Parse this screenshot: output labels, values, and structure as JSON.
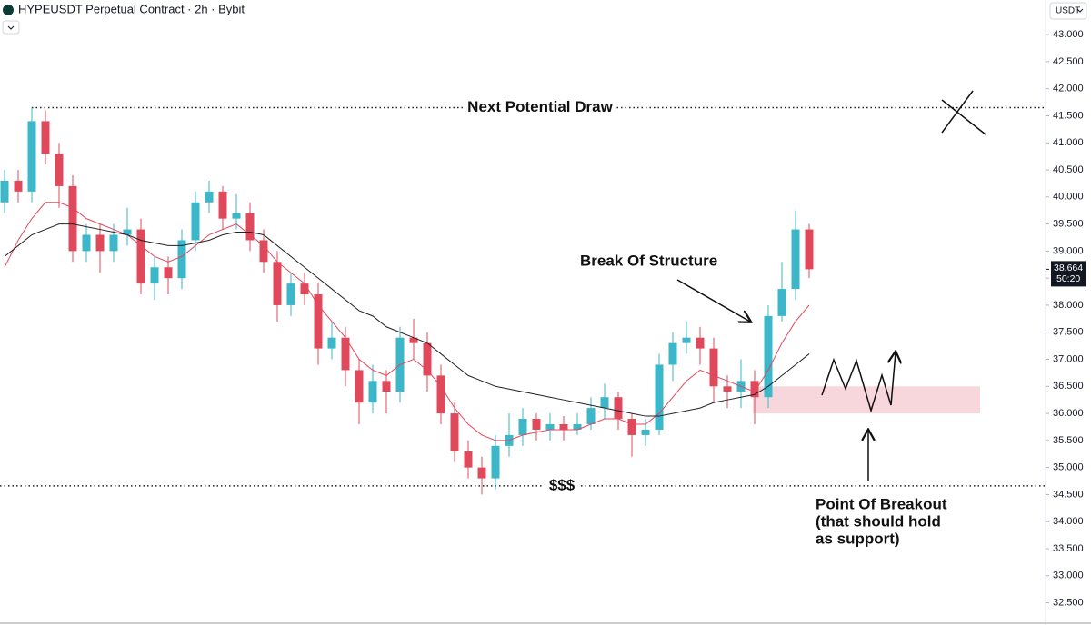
{
  "chart_data": {
    "type": "candlestick",
    "title": "HYPEUSDT Perpetual Contract · 2h · Bybit",
    "currency": "USDT",
    "up_color": "#3bb7c9",
    "down_color": "#e0485c",
    "open": [
      39.9,
      40.3,
      40.1,
      41.4,
      40.8,
      40.2,
      39.0,
      39.3,
      39.0,
      39.3,
      39.4,
      38.4,
      38.7,
      38.5,
      39.2,
      39.9,
      40.1,
      39.6,
      39.7,
      39.2,
      38.8,
      38.0,
      38.4,
      38.2,
      37.2,
      37.4,
      36.8,
      36.2,
      36.6,
      36.4,
      37.4,
      37.3,
      36.7,
      36.0,
      35.3,
      35.0,
      34.8,
      35.4,
      35.6,
      35.9,
      35.7,
      35.8,
      35.7,
      35.8,
      36.1,
      36.3,
      35.9,
      35.6,
      35.7,
      36.9,
      37.3,
      37.4,
      37.2,
      36.5,
      36.4,
      36.6,
      36.3,
      37.8,
      38.3,
      39.4
    ],
    "high": [
      40.5,
      40.5,
      41.65,
      41.6,
      41.0,
      40.4,
      39.5,
      39.5,
      39.5,
      39.8,
      39.6,
      38.9,
      38.9,
      39.4,
      40.1,
      40.3,
      40.2,
      40.05,
      39.9,
      39.4,
      39.0,
      38.6,
      38.6,
      38.4,
      37.7,
      37.6,
      37.0,
      36.9,
      36.8,
      37.6,
      37.75,
      37.5,
      36.9,
      36.2,
      35.5,
      35.2,
      35.6,
      36.0,
      36.1,
      36.0,
      36.0,
      35.95,
      36.0,
      36.3,
      36.55,
      36.4,
      36.0,
      35.9,
      37.1,
      37.5,
      37.7,
      37.6,
      37.4,
      36.7,
      37.0,
      36.8,
      38.0,
      38.8,
      39.75,
      39.5
    ],
    "low": [
      39.7,
      39.9,
      39.9,
      40.6,
      39.8,
      38.8,
      38.8,
      38.6,
      38.8,
      39.1,
      38.2,
      38.1,
      38.2,
      38.3,
      39.0,
      39.7,
      39.4,
      39.4,
      39.0,
      38.6,
      37.7,
      37.8,
      38.0,
      36.9,
      37.0,
      36.5,
      35.8,
      36.0,
      36.0,
      36.2,
      37.0,
      36.4,
      35.8,
      35.1,
      34.8,
      34.5,
      34.6,
      35.2,
      35.4,
      35.5,
      35.5,
      35.5,
      35.6,
      35.7,
      35.9,
      35.7,
      35.2,
      35.4,
      35.6,
      36.6,
      37.1,
      36.9,
      36.2,
      36.1,
      36.1,
      35.8,
      36.1,
      37.7,
      38.1,
      38.5
    ],
    "close": [
      40.3,
      40.1,
      41.4,
      40.8,
      40.2,
      39.0,
      39.3,
      39.0,
      39.3,
      39.4,
      38.4,
      38.7,
      38.5,
      39.2,
      39.9,
      40.1,
      39.6,
      39.7,
      39.2,
      38.8,
      38.0,
      38.4,
      38.2,
      37.2,
      37.4,
      36.8,
      36.2,
      36.6,
      36.4,
      37.4,
      37.3,
      36.7,
      36.0,
      35.3,
      35.0,
      34.8,
      35.4,
      35.6,
      35.9,
      35.7,
      35.8,
      35.7,
      35.8,
      36.1,
      36.3,
      35.9,
      35.6,
      35.7,
      36.9,
      37.3,
      37.4,
      37.2,
      36.5,
      36.4,
      36.6,
      36.3,
      37.8,
      38.3,
      39.4,
      38.664
    ],
    "series": [
      {
        "color": "#e0485c",
        "values": [
          38.7,
          39.2,
          39.6,
          39.9,
          39.9,
          39.8,
          39.6,
          39.5,
          39.4,
          39.3,
          39.1,
          38.9,
          38.8,
          38.9,
          39.1,
          39.3,
          39.4,
          39.5,
          39.3,
          39.1,
          38.8,
          38.6,
          38.4,
          38.0,
          37.7,
          37.4,
          37.0,
          36.8,
          36.7,
          36.9,
          37.0,
          36.8,
          36.5,
          36.1,
          35.8,
          35.6,
          35.5,
          35.5,
          35.6,
          35.65,
          35.7,
          35.7,
          35.7,
          35.8,
          35.9,
          35.9,
          35.8,
          35.8,
          36.0,
          36.3,
          36.6,
          36.8,
          36.7,
          36.6,
          36.5,
          36.4,
          36.8,
          37.3,
          37.7,
          38.0
        ]
      },
      {
        "color": "#222222",
        "values": [
          38.9,
          39.1,
          39.3,
          39.4,
          39.5,
          39.5,
          39.45,
          39.4,
          39.35,
          39.3,
          39.2,
          39.15,
          39.1,
          39.1,
          39.15,
          39.2,
          39.3,
          39.35,
          39.35,
          39.3,
          39.1,
          38.9,
          38.7,
          38.5,
          38.3,
          38.1,
          37.9,
          37.8,
          37.6,
          37.5,
          37.4,
          37.3,
          37.1,
          36.9,
          36.7,
          36.6,
          36.5,
          36.45,
          36.4,
          36.35,
          36.3,
          36.25,
          36.2,
          36.15,
          36.1,
          36.05,
          36.0,
          35.95,
          35.95,
          36.0,
          36.05,
          36.1,
          36.2,
          36.25,
          36.3,
          36.35,
          36.5,
          36.7,
          36.9,
          37.1
        ]
      }
    ],
    "ylim": [
      32.14,
      43.64
    ],
    "yticks": [
      {
        "value": 43,
        "label": "43.000"
      },
      {
        "value": 42.5,
        "label": "42.500"
      },
      {
        "value": 42,
        "label": "42.000"
      },
      {
        "value": 41.5,
        "label": "41.500"
      },
      {
        "value": 41,
        "label": "41.000"
      },
      {
        "value": 40.5,
        "label": "40.500"
      },
      {
        "value": 40,
        "label": "40.000"
      },
      {
        "value": 39.5,
        "label": "39.500"
      },
      {
        "value": 39,
        "label": "39.000"
      },
      {
        "value": 38.5,
        "label": "38.500"
      },
      {
        "value": 38,
        "label": "38.000"
      },
      {
        "value": 37.5,
        "label": "37.500"
      },
      {
        "value": 37,
        "label": "37.000"
      },
      {
        "value": 36.5,
        "label": "36.500"
      },
      {
        "value": 36,
        "label": "36.000"
      },
      {
        "value": 35.5,
        "label": "35.500"
      },
      {
        "value": 35,
        "label": "35.000"
      },
      {
        "value": 34.5,
        "label": "34.500"
      },
      {
        "value": 34,
        "label": "34.000"
      },
      {
        "value": 33.5,
        "label": "33.500"
      },
      {
        "value": 33,
        "label": "33.000"
      },
      {
        "value": 32.5,
        "label": "32.500"
      }
    ],
    "current_price": 38.664,
    "countdown": "50:20",
    "levels": [
      {
        "value": 41.65,
        "label": "Next Potential Draw"
      },
      {
        "value": 34.66,
        "label": "$$$"
      }
    ],
    "zone": {
      "low": 36.0,
      "high": 36.5,
      "color": "#f8d7dc"
    },
    "annotations": {
      "structure": "Break Of Structure",
      "breakout": [
        "Point Of Breakout",
        "(that should hold",
        "as support)"
      ]
    }
  }
}
